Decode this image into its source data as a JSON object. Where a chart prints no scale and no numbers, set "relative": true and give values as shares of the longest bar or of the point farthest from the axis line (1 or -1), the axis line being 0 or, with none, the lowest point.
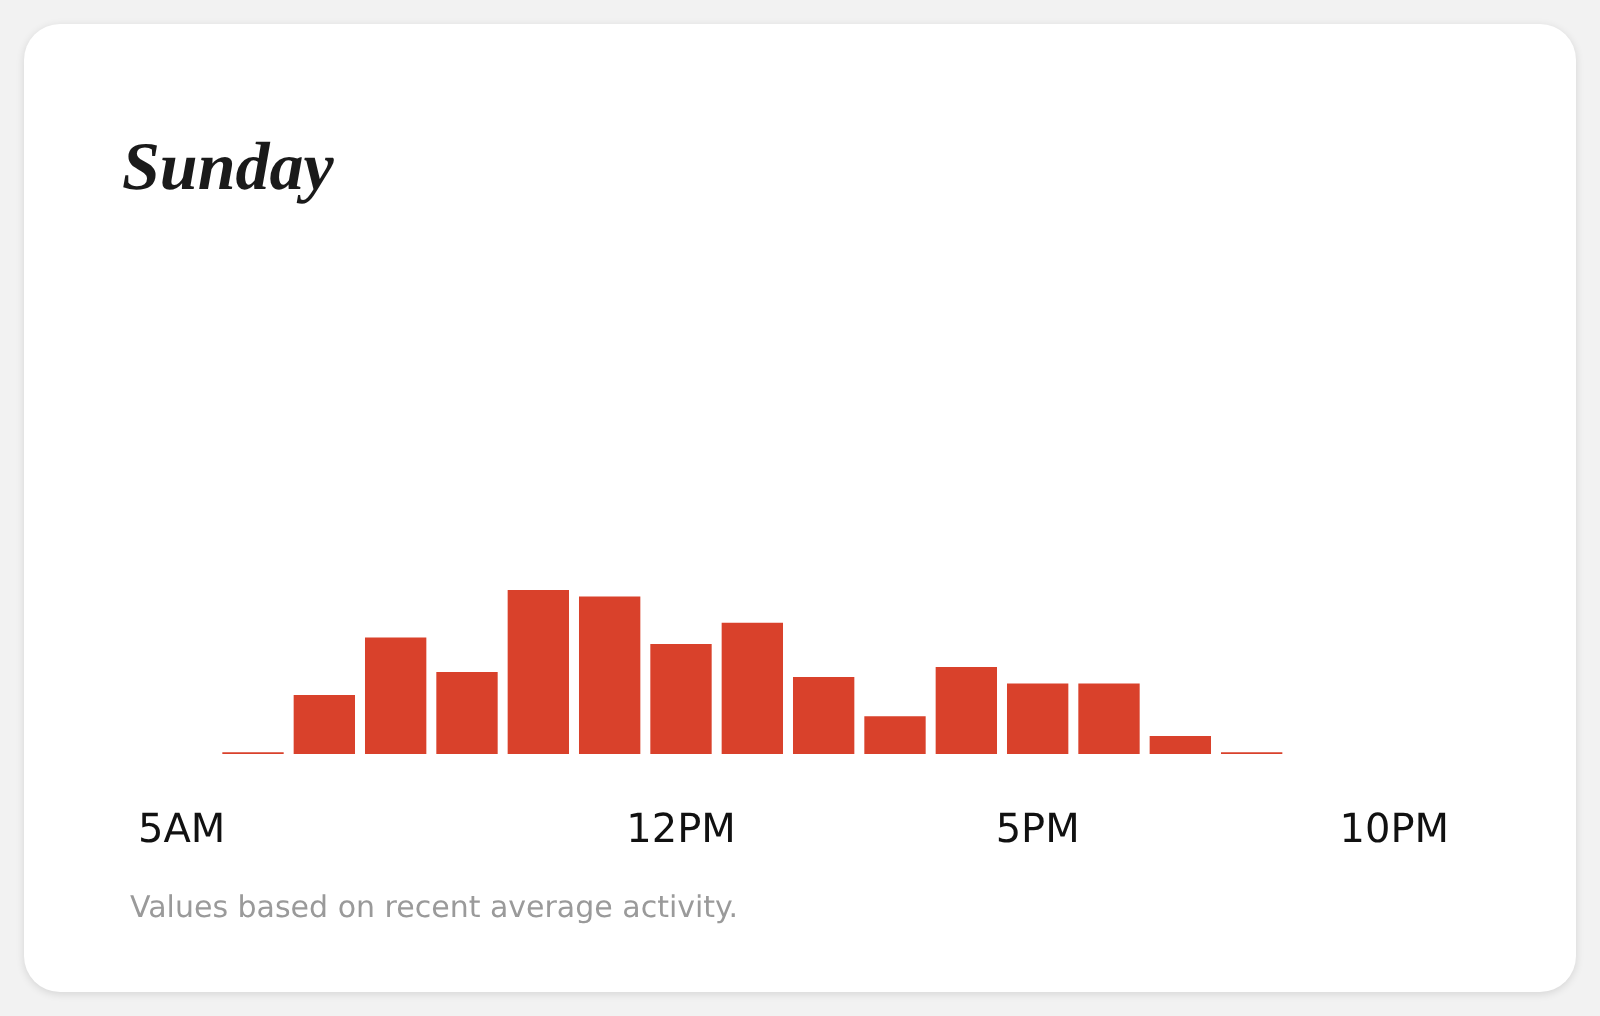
{
  "chart_data": {
    "type": "bar",
    "title": "Sunday",
    "relative": true,
    "color": "#d9412b",
    "categories": [
      "5AM",
      null,
      null,
      null,
      null,
      null,
      null,
      "12PM",
      null,
      null,
      null,
      null,
      "5PM",
      null,
      null,
      null,
      null,
      "10PM"
    ],
    "values": [
      0,
      0.01,
      0.36,
      0.71,
      0.5,
      1,
      0.96,
      0.67,
      0.8,
      0.47,
      0.23,
      0.53,
      0.43,
      0.43,
      0.11,
      0.01,
      0,
      0
    ],
    "annotations": [
      "Values based on recent average activity."
    ],
    "grid": false
  }
}
